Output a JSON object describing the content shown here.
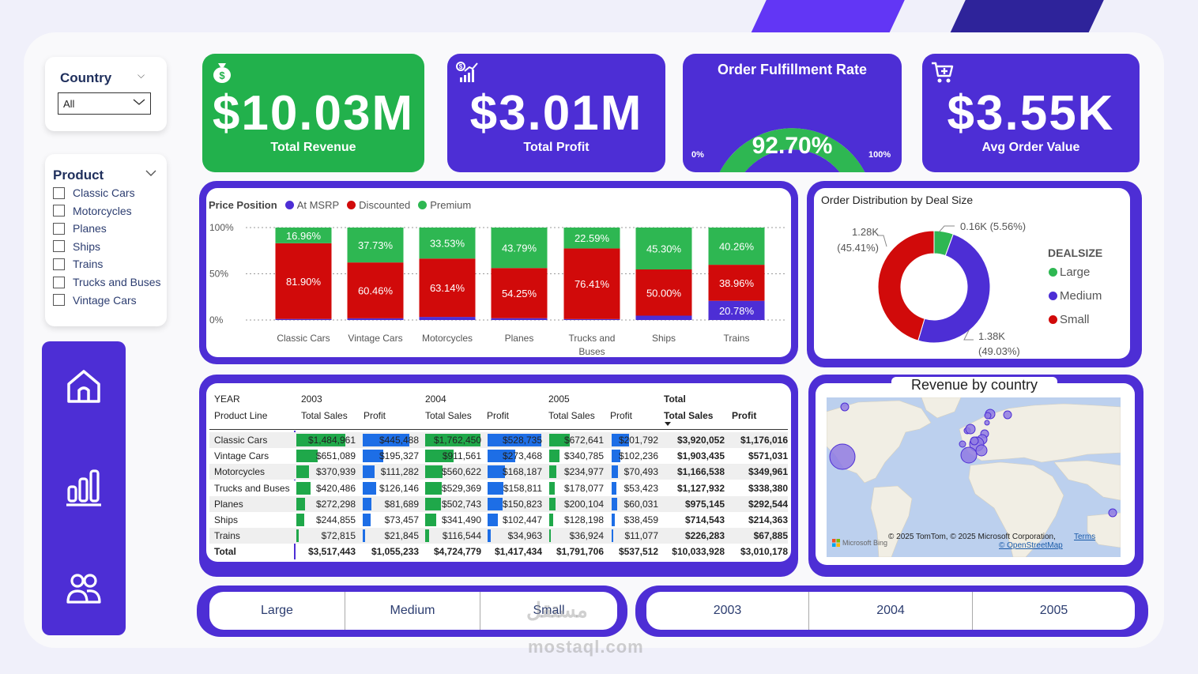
{
  "filters": {
    "country": {
      "title": "Country",
      "value": "All"
    },
    "product": {
      "title": "Product",
      "items": [
        "Classic Cars",
        "Motorcycles",
        "Planes",
        "Ships",
        "Trains",
        "Trucks and Buses",
        "Vintage Cars"
      ]
    }
  },
  "nav": {
    "icons": [
      "home-icon",
      "bar-chart-icon",
      "users-icon"
    ]
  },
  "kpis": {
    "revenue": {
      "value": "$10.03M",
      "label": "Total Revenue",
      "icon": "money-bag-icon",
      "color": "#22b14c"
    },
    "profit": {
      "value": "$3.01M",
      "label": "Total Profit",
      "icon": "growth-chart-icon",
      "color": "#4d2ed5"
    },
    "fulfillment": {
      "title": "Order Fulfillment Rate",
      "value": "92.70%",
      "rate": 0.927,
      "min_label": "0%",
      "max_label": "100%"
    },
    "avg_order": {
      "value": "$3.55K",
      "label": "Avg Order Value",
      "icon": "cart-plus-icon"
    }
  },
  "price_chart": {
    "legend_title": "Price Position",
    "y_ticks": [
      "100%",
      "50%",
      "0%"
    ],
    "categories": [
      "Classic Cars",
      "Vintage Cars",
      "Motorcycles",
      "Planes",
      "Trucks and Buses",
      "Ships",
      "Trains"
    ],
    "series": [
      {
        "name": "At MSRP",
        "color": "#4d2ed5",
        "values": [
          1.14,
          1.81,
          3.33,
          1.96,
          1.0,
          4.7,
          20.78
        ],
        "labels": [
          "",
          "",
          "",
          "",
          "",
          "",
          "20.78%"
        ]
      },
      {
        "name": "Discounted",
        "color": "#d10a0a",
        "values": [
          81.9,
          60.46,
          63.14,
          54.25,
          76.41,
          50.0,
          38.96
        ],
        "labels": [
          "81.90%",
          "60.46%",
          "63.14%",
          "54.25%",
          "76.41%",
          "50.00%",
          "38.96%"
        ]
      },
      {
        "name": "Premium",
        "color": "#2eb752",
        "values": [
          16.96,
          37.73,
          33.53,
          43.79,
          22.59,
          45.3,
          40.26
        ],
        "labels": [
          "16.96%",
          "37.73%",
          "33.53%",
          "43.79%",
          "22.59%",
          "45.30%",
          "40.26%"
        ]
      }
    ]
  },
  "deal_chart": {
    "title": "Order Distribution by Deal Size",
    "legend_title": "DEALSIZE",
    "slices": [
      {
        "name": "Large",
        "value": 0.16,
        "pct": 5.56,
        "color": "#2eb752",
        "label": "0.16K (5.56%)"
      },
      {
        "name": "Medium",
        "value": 1.38,
        "pct": 49.03,
        "color": "#4d2ed5",
        "label1": "1.38K",
        "label2": "(49.03%)"
      },
      {
        "name": "Small",
        "value": 1.28,
        "pct": 45.41,
        "color": "#d10a0a",
        "label1": "1.28K",
        "label2": "(45.41%)"
      }
    ]
  },
  "matrix": {
    "header1": {
      "row_label": "YEAR",
      "y2003": "2003",
      "y2004": "2004",
      "y2005": "2005",
      "total": "Total"
    },
    "header2": {
      "row_label": "Product Line",
      "sales": "Total Sales",
      "profit": "Profit"
    },
    "rows": [
      {
        "name": "Classic Cars",
        "s03": "$1,484,961",
        "p03": "$445,488",
        "s04": "$1,762,450",
        "p04": "$528,735",
        "s05": "$672,641",
        "p05": "$201,792",
        "ts": "$3,920,052",
        "tp": "$1,176,016",
        "v": [
          1484961,
          445488,
          1762450,
          528735,
          672641,
          201792
        ]
      },
      {
        "name": "Vintage Cars",
        "s03": "$651,089",
        "p03": "$195,327",
        "s04": "$911,561",
        "p04": "$273,468",
        "s05": "$340,785",
        "p05": "$102,236",
        "ts": "$1,903,435",
        "tp": "$571,031",
        "v": [
          651089,
          195327,
          911561,
          273468,
          340785,
          102236
        ]
      },
      {
        "name": "Motorcycles",
        "s03": "$370,939",
        "p03": "$111,282",
        "s04": "$560,622",
        "p04": "$168,187",
        "s05": "$234,977",
        "p05": "$70,493",
        "ts": "$1,166,538",
        "tp": "$349,961",
        "v": [
          370939,
          111282,
          560622,
          168187,
          234977,
          70493
        ]
      },
      {
        "name": "Trucks and Buses",
        "s03": "$420,486",
        "p03": "$126,146",
        "s04": "$529,369",
        "p04": "$158,811",
        "s05": "$178,077",
        "p05": "$53,423",
        "ts": "$1,127,932",
        "tp": "$338,380",
        "v": [
          420486,
          126146,
          529369,
          158811,
          178077,
          53423
        ]
      },
      {
        "name": "Planes",
        "s03": "$272,298",
        "p03": "$81,689",
        "s04": "$502,743",
        "p04": "$150,823",
        "s05": "$200,104",
        "p05": "$60,031",
        "ts": "$975,145",
        "tp": "$292,544",
        "v": [
          272298,
          81689,
          502743,
          150823,
          200104,
          60031
        ]
      },
      {
        "name": "Ships",
        "s03": "$244,855",
        "p03": "$73,457",
        "s04": "$341,490",
        "p04": "$102,447",
        "s05": "$128,198",
        "p05": "$38,459",
        "ts": "$714,543",
        "tp": "$214,363",
        "v": [
          244855,
          73457,
          341490,
          102447,
          128198,
          38459
        ]
      },
      {
        "name": "Trains",
        "s03": "$72,815",
        "p03": "$21,845",
        "s04": "$116,544",
        "p04": "$34,963",
        "s05": "$36,924",
        "p05": "$11,077",
        "ts": "$226,283",
        "tp": "$67,885",
        "v": [
          72815,
          21845,
          116544,
          34963,
          36924,
          11077
        ]
      }
    ],
    "total": {
      "name": "Total",
      "s03": "$3,517,443",
      "p03": "$1,055,233",
      "s04": "$4,724,779",
      "p04": "$1,417,434",
      "s05": "$1,791,706",
      "p05": "$537,512",
      "ts": "$10,033,928",
      "tp": "$3,010,178"
    }
  },
  "map": {
    "title": "Revenue by country",
    "credit": "© 2025 TomTom, © 2025 Microsoft Corporation,",
    "terms": "Terms",
    "osm": "© OpenStreetMap",
    "brand": "Microsoft Bing"
  },
  "deal_buttons": [
    "Large",
    "Medium",
    "Small"
  ],
  "year_buttons": [
    "2003",
    "2004",
    "2005"
  ],
  "watermark": {
    "arabic": "مستقل",
    "latin": "mostaql.com"
  }
}
